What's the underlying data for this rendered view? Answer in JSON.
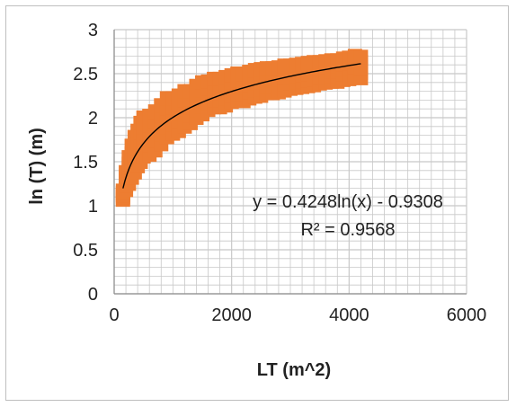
{
  "chart_data": {
    "type": "scatter",
    "title": "",
    "xlabel": "LT (m^2)",
    "ylabel": "ln (T) (m)",
    "xlim": [
      0,
      6000
    ],
    "ylim": [
      0,
      3
    ],
    "x_ticks": [
      "0",
      "2000",
      "4000",
      "6000"
    ],
    "y_ticks": [
      "0",
      "0.5",
      "1",
      "1.5",
      "2",
      "2.5",
      "3"
    ],
    "grid": {
      "major": true,
      "minor": true
    },
    "legend": "none",
    "colors": {
      "points": "#ED7D31",
      "trendline": "#000000",
      "grid": "#c8c8c8",
      "axis": "#8c8c8c"
    },
    "trendline": {
      "type": "logarithmic",
      "coefficient": 0.4248,
      "intercept": -0.9308,
      "x_range": [
        150,
        4200
      ],
      "equation_label": "y = 0.4248ln(x) - 0.9308",
      "r2_label": "R² = 0.9568"
    },
    "series": [
      {
        "x": [
          150,
          200,
          250,
          300,
          350,
          400,
          450,
          500,
          600,
          700,
          800,
          900,
          1000,
          1100,
          1200,
          1300,
          1400,
          1500,
          1600,
          1700,
          1800,
          1900,
          2000,
          2100,
          2200,
          2300,
          2400,
          2500,
          2600,
          2700,
          2800,
          2900,
          3000,
          3100,
          3200,
          3300,
          3400,
          3500,
          3600,
          3700,
          3800,
          3900,
          4000,
          4100,
          4200
        ],
        "y": [
          1.12,
          1.28,
          1.4,
          1.5,
          1.58,
          1.65,
          1.72,
          1.78,
          1.8,
          1.85,
          1.92,
          2.0,
          2.02,
          2.05,
          2.1,
          2.12,
          2.18,
          2.22,
          2.25,
          2.28,
          2.28,
          2.3,
          2.33,
          2.35,
          2.34,
          2.37,
          2.39,
          2.4,
          2.42,
          2.42,
          2.43,
          2.45,
          2.46,
          2.47,
          2.48,
          2.49,
          2.5,
          2.51,
          2.52,
          2.53,
          2.53,
          2.55,
          2.56,
          2.58,
          2.57
        ],
        "y_spread": [
          0.05,
          0.1,
          0.15,
          0.18,
          0.2,
          0.2,
          0.22,
          0.22,
          0.22,
          0.22,
          0.22,
          0.22,
          0.2,
          0.2,
          0.2,
          0.18,
          0.18,
          0.18,
          0.16,
          0.16,
          0.16,
          0.16,
          0.15,
          0.15,
          0.15,
          0.15,
          0.15,
          0.15,
          0.14,
          0.14,
          0.14,
          0.14,
          0.13,
          0.13,
          0.13,
          0.13,
          0.13,
          0.12,
          0.12,
          0.12,
          0.12,
          0.12,
          0.12,
          0.12,
          0.12
        ]
      }
    ]
  }
}
